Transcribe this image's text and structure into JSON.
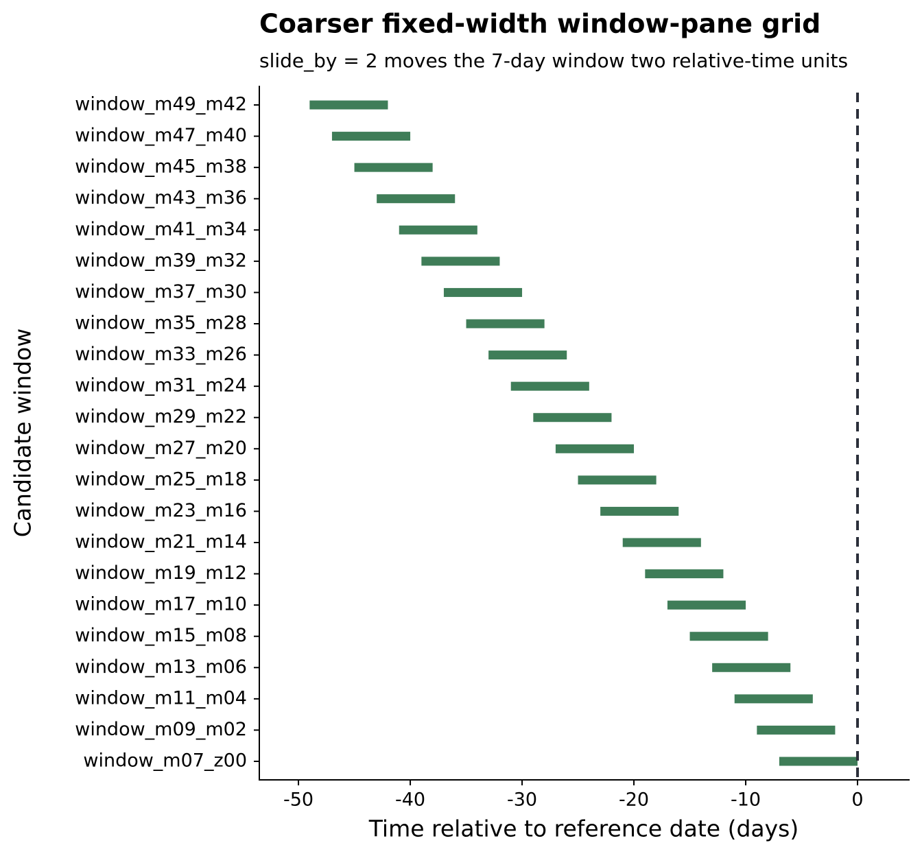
{
  "chart_data": {
    "type": "range",
    "title": "Coarser fixed-width window-pane grid",
    "subtitle": "slide_by = 2 moves the 7-day window two relative-time units",
    "x_label": "Time relative to reference date (days)",
    "y_label": "Candidate window",
    "categories": [
      "window_m49_m42",
      "window_m47_m40",
      "window_m45_m38",
      "window_m43_m36",
      "window_m41_m34",
      "window_m39_m32",
      "window_m37_m30",
      "window_m35_m28",
      "window_m33_m26",
      "window_m31_m24",
      "window_m29_m22",
      "window_m27_m20",
      "window_m25_m18",
      "window_m23_m16",
      "window_m21_m14",
      "window_m19_m12",
      "window_m17_m10",
      "window_m15_m08",
      "window_m13_m06",
      "window_m11_m04",
      "window_m09_m02",
      "window_m07_z00"
    ],
    "start": [
      -49,
      -47,
      -45,
      -43,
      -41,
      -39,
      -37,
      -35,
      -33,
      -31,
      -29,
      -27,
      -25,
      -23,
      -21,
      -19,
      -17,
      -15,
      -13,
      -11,
      -9,
      -7
    ],
    "end": [
      -42,
      -40,
      -38,
      -36,
      -34,
      -32,
      -30,
      -28,
      -26,
      -24,
      -22,
      -20,
      -18,
      -16,
      -14,
      -12,
      -10,
      -8,
      -6,
      -4,
      -2,
      0
    ],
    "color": "#3f7d58",
    "reference_line": 0,
    "reference_color": "#2b2f3a",
    "xlim": [
      -53.5,
      4.6
    ],
    "xticks": [
      -50,
      -40,
      -30,
      -20,
      -10,
      0
    ],
    "grid": false
  }
}
